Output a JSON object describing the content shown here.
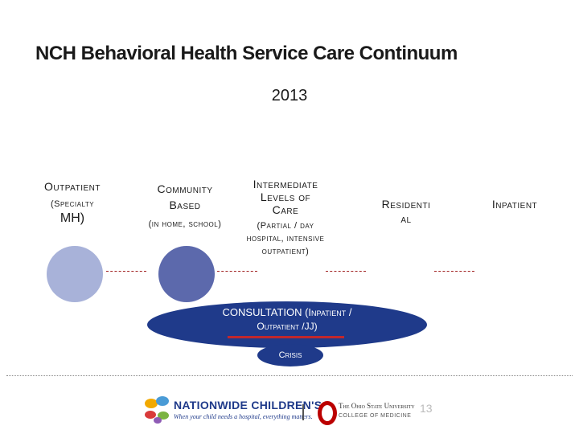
{
  "title": "NCH Behavioral Health Service Care Continuum",
  "year": "2013",
  "columns": {
    "outpatient": {
      "heading": "Outpatient",
      "sub1": "(Specialty",
      "sub2": "MH)"
    },
    "community": {
      "heading1": "Community",
      "heading2": "Based",
      "sub": "(in home, school)"
    },
    "intermediate": {
      "heading1": "Intermediate",
      "heading2": "Levels of",
      "heading3": "Care",
      "sub1": "(Partial / day",
      "sub2": "hospital, intensive",
      "sub3": "outpatient)"
    },
    "residential": {
      "line1": "Residenti",
      "line2": "al"
    },
    "inpatient": {
      "heading": "Inpatient"
    }
  },
  "consultation": {
    "line1": "CONSULTATION (Inpatient /",
    "line2": "Outpatient /JJ)"
  },
  "crisis": "Crisis",
  "footer": {
    "nch_name": "NATIONWIDE CHILDREN'S",
    "nch_tagline": "When your child needs a hospital, everything matters.",
    "osu_name": "The Ohio State University",
    "osu_sub": "COLLEGE OF MEDICINE",
    "page_number": "13"
  },
  "colors": {
    "circle_outpatient": "#a8b2d9",
    "circle_community": "#5c69ac",
    "navy": "#1f3a8a",
    "accent_red": "#c0272d"
  }
}
